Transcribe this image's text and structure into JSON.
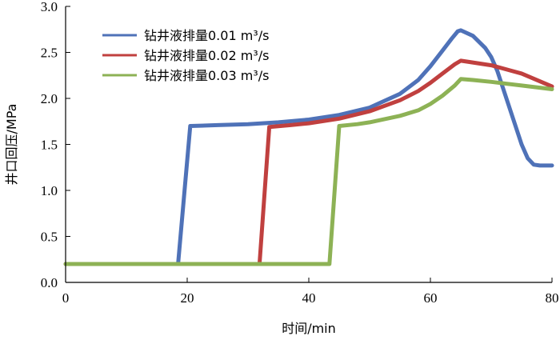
{
  "chart_data": {
    "type": "line",
    "xlabel": "时间/min",
    "ylabel": "井口回压/MPa",
    "xlim": [
      0,
      80
    ],
    "ylim": [
      0,
      3.0
    ],
    "xticks": [
      "0",
      "20",
      "40",
      "60",
      "80"
    ],
    "yticks": [
      "0.0",
      "0.5",
      "1.0",
      "1.5",
      "2.0",
      "2.5",
      "3.0"
    ],
    "grid": false,
    "legend_position": "top-left",
    "series": [
      {
        "name": "钻井液排量0.01 m³/s",
        "color": "#4f72b8",
        "x": [
          0,
          18.5,
          20.5,
          25,
          30,
          35,
          40,
          45,
          50,
          55,
          58,
          60,
          62,
          63.5,
          64.5,
          65,
          67,
          69,
          70,
          71,
          72,
          73,
          74,
          75,
          76,
          77,
          78,
          79,
          80
        ],
        "y": [
          0.2,
          0.2,
          1.7,
          1.71,
          1.72,
          1.74,
          1.77,
          1.82,
          1.9,
          2.05,
          2.2,
          2.35,
          2.52,
          2.65,
          2.73,
          2.74,
          2.68,
          2.55,
          2.45,
          2.3,
          2.1,
          1.9,
          1.7,
          1.5,
          1.35,
          1.28,
          1.27,
          1.27,
          1.27
        ]
      },
      {
        "name": "钻井液排量0.02 m³/s",
        "color": "#c0403f",
        "x": [
          0,
          31.9,
          33.5,
          37,
          40,
          45,
          50,
          55,
          58,
          60,
          62,
          64,
          65,
          66,
          70,
          75,
          80
        ],
        "y": [
          0.2,
          0.2,
          1.69,
          1.71,
          1.73,
          1.78,
          1.86,
          1.98,
          2.08,
          2.17,
          2.27,
          2.37,
          2.41,
          2.4,
          2.36,
          2.27,
          2.13
        ]
      },
      {
        "name": "钻井液排量0.03 m³/s",
        "color": "#8db255",
        "x": [
          0,
          43.4,
          45,
          48,
          50,
          55,
          58,
          60,
          62,
          64,
          65,
          67,
          70,
          75,
          80
        ],
        "y": [
          0.2,
          0.2,
          1.7,
          1.72,
          1.74,
          1.81,
          1.87,
          1.94,
          2.03,
          2.14,
          2.21,
          2.2,
          2.18,
          2.14,
          2.1
        ]
      }
    ]
  }
}
